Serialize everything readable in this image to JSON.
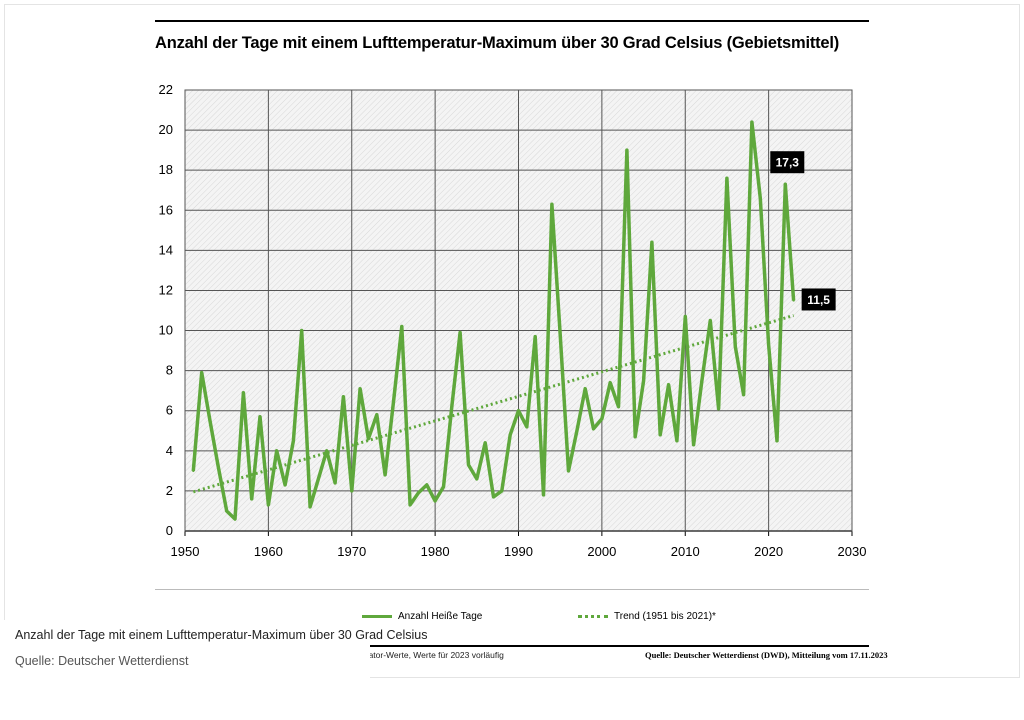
{
  "chart_data": {
    "type": "line",
    "title": "Anzahl der Tage mit einem Lufttemperatur-Maximum über 30 Grad Celsius (Gebietsmittel)",
    "xlabel": "",
    "ylabel": "",
    "xlim": [
      1950,
      2030
    ],
    "ylim": [
      0,
      22
    ],
    "x_ticks": [
      "1950",
      "1960",
      "1970",
      "1980",
      "1990",
      "2000",
      "2010",
      "2020",
      "2030"
    ],
    "y_ticks": [
      "0",
      "2",
      "4",
      "6",
      "8",
      "10",
      "12",
      "14",
      "16",
      "18",
      "20",
      "22"
    ],
    "grid": true,
    "legend_position": "bottom",
    "series": [
      {
        "name": "Anzahl Heiße Tage",
        "color": "#5fa83c",
        "style": "solid",
        "x": [
          1951,
          1952,
          1953,
          1954,
          1955,
          1956,
          1957,
          1958,
          1959,
          1960,
          1961,
          1962,
          1963,
          1964,
          1965,
          1966,
          1967,
          1968,
          1969,
          1970,
          1971,
          1972,
          1973,
          1974,
          1975,
          1976,
          1977,
          1978,
          1979,
          1980,
          1981,
          1982,
          1983,
          1984,
          1985,
          1986,
          1987,
          1988,
          1989,
          1990,
          1991,
          1992,
          1993,
          1994,
          1995,
          1996,
          1997,
          1998,
          1999,
          2000,
          2001,
          2002,
          2003,
          2004,
          2005,
          2006,
          2007,
          2008,
          2009,
          2010,
          2011,
          2012,
          2013,
          2014,
          2015,
          2016,
          2017,
          2018,
          2019,
          2020,
          2021,
          2022,
          2023
        ],
        "y": [
          3.0,
          7.9,
          5.5,
          3.2,
          1.0,
          0.6,
          6.9,
          1.6,
          5.7,
          1.3,
          4.0,
          2.3,
          4.5,
          10.0,
          1.2,
          2.6,
          4.0,
          2.4,
          6.7,
          2.0,
          7.1,
          4.6,
          5.8,
          2.8,
          6.4,
          10.2,
          1.3,
          1.9,
          2.3,
          1.5,
          2.2,
          6.2,
          9.9,
          3.3,
          2.6,
          4.4,
          1.7,
          2.0,
          4.8,
          6.0,
          5.2,
          9.7,
          1.8,
          16.3,
          9.8,
          3.0,
          5.0,
          7.1,
          5.1,
          5.6,
          7.4,
          6.2,
          19.0,
          4.7,
          7.5,
          14.4,
          4.8,
          7.3,
          4.5,
          10.7,
          4.3,
          7.5,
          10.5,
          6.1,
          17.6,
          9.2,
          6.8,
          20.4,
          16.6,
          9.3,
          4.5,
          17.3,
          11.5
        ]
      },
      {
        "name": "Trend (1951 bis 2021)*",
        "color": "#5fa83c",
        "style": "dotted",
        "x": [
          1951,
          2023
        ],
        "y": [
          1.95,
          10.75
        ]
      }
    ],
    "annotations": [
      {
        "x": 2022,
        "y": 17.3,
        "label": "17,3"
      },
      {
        "x": 2023,
        "y": 11.5,
        "label": "11,5"
      }
    ]
  },
  "header": {
    "title": "Anzahl der Tage mit einem Lufttemperatur-Maximum über 30 Grad Celsius (Gebietsmittel)"
  },
  "legend": {
    "series_label": "Anzahl Heiße Tage",
    "trend_label": "Trend (1951 bis 2021)*"
  },
  "footer": {
    "footnote": "* lineare Regressionsgerade über alle dargestellten Indikator-Werte, Werte für 2023 vorläufig",
    "source": "Quelle: Deutscher Wetterdienst (DWD), Mitteilung vom 17.11.2023"
  },
  "caption": {
    "title": "Anzahl der Tage mit einem Lufttemperatur-Maximum über 30 Grad Celsius",
    "source": "Quelle: Deutscher Wetterdienst"
  }
}
